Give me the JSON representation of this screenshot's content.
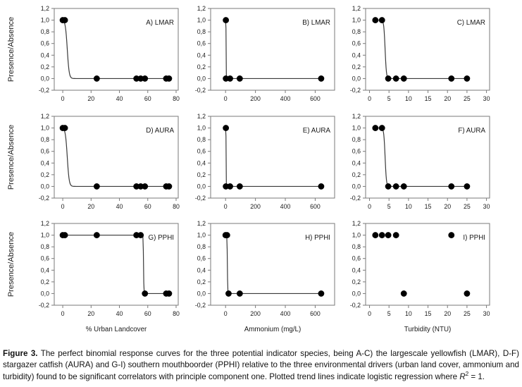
{
  "figure": {
    "caption_label": "Figure 3.",
    "caption_text": " The perfect binomial response curves for the three potential indicator species, being A-C) the largescale yellowfish (LMAR), D-F) stargazer catfish (AURA) and G-I) southern mouthboorder (PPHI) relative to the three environmental drivers (urban land cover, ammonium and turbidity) found to be significant correlators with principle component one. Plotted trend lines indicate logistic regression where ",
    "caption_r": "R",
    "caption_r_sup": "2",
    "caption_tail": " = 1."
  },
  "style": {
    "dot_color": "#000000",
    "line_color": "#3a3a3a",
    "frame_color": "#7a7a7a",
    "text_color": "#1a1a1a"
  },
  "chart_data": [
    {
      "type": "scatter",
      "label": "A) LMAR",
      "ylabel": "Presence/Absence",
      "xlabel": "",
      "xlim": [
        -6,
        81.5
      ],
      "xticks": [
        0,
        20,
        40,
        60,
        80
      ],
      "xtick_labels": [
        "0",
        "20",
        "40",
        "60",
        "80"
      ],
      "ylim": [
        -0.2,
        1.2
      ],
      "ytick_values": [
        1.2,
        1.0,
        0.8,
        0.6,
        0.4,
        0.2,
        0.0,
        -0.2
      ],
      "ytick_labels": [
        "1,2",
        "1,0",
        "0,8",
        "0,6",
        "0,4",
        "0,2",
        "0,0",
        "-0,2"
      ],
      "points": {
        "presence": [
          0,
          1.5
        ],
        "absence": [
          24,
          52,
          55,
          58,
          73,
          75
        ]
      },
      "trend": {
        "x0": 3.2,
        "k": 1.5,
        "x_start": 0,
        "x_end": 75
      }
    },
    {
      "type": "scatter",
      "label": "B) LMAR",
      "ylabel": "Presence/Absence",
      "xlabel": "",
      "xlim": [
        -100,
        730
      ],
      "xticks": [
        0,
        200,
        400,
        600
      ],
      "xtick_labels": [
        "0",
        "200",
        "400",
        "600"
      ],
      "ylim": [
        -0.2,
        1.2
      ],
      "ytick_values": [
        1.2,
        1.0,
        0.8,
        0.6,
        0.4,
        0.2,
        0.0,
        -0.2
      ],
      "ytick_labels": [
        "1,2",
        "1,0",
        "0,8",
        "0,6",
        "0,4",
        "0,2",
        "0,0",
        "-0,2"
      ],
      "points": {
        "presence": [
          2
        ],
        "absence": [
          2,
          30,
          95,
          640
        ]
      },
      "trend": {
        "x0": 3.5,
        "k": 2.2,
        "x_start": 0,
        "x_end": 640
      }
    },
    {
      "type": "scatter",
      "label": "C) LMAR",
      "ylabel": "Presence/Absence",
      "xlabel": "",
      "xlim": [
        -1,
        30.8
      ],
      "xticks": [
        0,
        5,
        10,
        15,
        20,
        25,
        30
      ],
      "xtick_labels": [
        "0",
        "5",
        "10",
        "15",
        "20",
        "25",
        "30"
      ],
      "ylim": [
        -0.2,
        1.2
      ],
      "ytick_values": [
        1.2,
        1.0,
        0.8,
        0.6,
        0.4,
        0.2,
        0.0,
        -0.2
      ],
      "ytick_labels": [
        "1,2",
        "1,0",
        "0,8",
        "0,6",
        "0,4",
        "0,2",
        "0,0",
        "-0,2"
      ],
      "points": {
        "presence": [
          1.5,
          3.2
        ],
        "absence": [
          4.8,
          6.8,
          8.8,
          21,
          25
        ]
      },
      "trend": {
        "x0": 4.0,
        "k": 6,
        "x_start": 1.5,
        "x_end": 25
      }
    },
    {
      "type": "scatter",
      "label": "D) AURA",
      "ylabel": "Presence/Absence",
      "xlabel": "",
      "xlim": [
        -6,
        81.5
      ],
      "xticks": [
        0,
        20,
        40,
        60,
        80
      ],
      "xtick_labels": [
        "0",
        "20",
        "40",
        "60",
        "80"
      ],
      "ylim": [
        -0.2,
        1.2
      ],
      "ytick_values": [
        1.2,
        1.0,
        0.8,
        0.6,
        0.4,
        0.2,
        0.0,
        -0.2
      ],
      "ytick_labels": [
        "1,2",
        "1,0",
        "0,8",
        "0,6",
        "0,4",
        "0,2",
        "0,0",
        "-0,2"
      ],
      "points": {
        "presence": [
          0,
          1.5
        ],
        "absence": [
          24,
          52,
          55,
          58,
          73,
          75
        ]
      },
      "trend": {
        "x0": 3.2,
        "k": 1.5,
        "x_start": 0,
        "x_end": 75
      }
    },
    {
      "type": "scatter",
      "label": "E) AURA",
      "ylabel": "Presence/Absence",
      "xlabel": "",
      "xlim": [
        -100,
        730
      ],
      "xticks": [
        0,
        200,
        400,
        600
      ],
      "xtick_labels": [
        "0",
        "200",
        "400",
        "600"
      ],
      "ylim": [
        -0.2,
        1.2
      ],
      "ytick_values": [
        1.2,
        1.0,
        0.8,
        0.6,
        0.4,
        0.2,
        0.0,
        -0.2
      ],
      "ytick_labels": [
        "1,2",
        "1,0",
        "0,8",
        "0,6",
        "0,4",
        "0,2",
        "0,0",
        "-0,2"
      ],
      "points": {
        "presence": [
          2
        ],
        "absence": [
          2,
          30,
          95,
          640
        ]
      },
      "trend": {
        "x0": 3.5,
        "k": 2.2,
        "x_start": 0,
        "x_end": 640
      }
    },
    {
      "type": "scatter",
      "label": "F) AURA",
      "ylabel": "Presence/Absence",
      "xlabel": "",
      "xlim": [
        -1,
        30.8
      ],
      "xticks": [
        0,
        5,
        10,
        15,
        20,
        25,
        30
      ],
      "xtick_labels": [
        "0",
        "5",
        "10",
        "15",
        "20",
        "25",
        "30"
      ],
      "ylim": [
        -0.2,
        1.2
      ],
      "ytick_values": [
        1.2,
        1.0,
        0.8,
        0.6,
        0.4,
        0.2,
        0.0,
        -0.2
      ],
      "ytick_labels": [
        "1,2",
        "1,0",
        "0,8",
        "0,6",
        "0,4",
        "0,2",
        "0,0",
        "-0,2"
      ],
      "points": {
        "presence": [
          1.5,
          3.2
        ],
        "absence": [
          4.8,
          6.8,
          8.8,
          21,
          25
        ]
      },
      "trend": {
        "x0": 4.0,
        "k": 6,
        "x_start": 1.5,
        "x_end": 25
      }
    },
    {
      "type": "scatter",
      "label": "G) PPHI",
      "ylabel": "Presence/Absence",
      "xlabel": "% Urban Landcover",
      "xlim": [
        -6,
        81.5
      ],
      "xticks": [
        0,
        20,
        40,
        60,
        80
      ],
      "xtick_labels": [
        "0",
        "20",
        "40",
        "60",
        "80"
      ],
      "ylim": [
        -0.2,
        1.2
      ],
      "ytick_values": [
        1.2,
        1.0,
        0.8,
        0.6,
        0.4,
        0.2,
        0.0,
        -0.2
      ],
      "ytick_labels": [
        "1,2",
        "1,0",
        "0,8",
        "0,6",
        "0,4",
        "0,2",
        "0,0",
        "-0,2"
      ],
      "points": {
        "presence": [
          0,
          1.5,
          24,
          52,
          55
        ],
        "absence": [
          58,
          73,
          75
        ]
      },
      "trend": {
        "x0": 57,
        "k": 8,
        "x_start": 0,
        "x_end": 75
      }
    },
    {
      "type": "scatter",
      "label": "H) PPHI",
      "ylabel": "Presence/Absence",
      "xlabel": "Ammonium (mg/L)",
      "xlim": [
        -100,
        730
      ],
      "xticks": [
        0,
        200,
        400,
        600
      ],
      "xtick_labels": [
        "0",
        "200",
        "400",
        "600"
      ],
      "ylim": [
        -0.2,
        1.2
      ],
      "ytick_values": [
        1.2,
        1.0,
        0.8,
        0.6,
        0.4,
        0.2,
        0.0,
        -0.2
      ],
      "ytick_labels": [
        "1,2",
        "1,0",
        "0,8",
        "0,6",
        "0,4",
        "0,2",
        "0,0",
        "-0,2"
      ],
      "points": {
        "presence": [
          0,
          10
        ],
        "absence": [
          20,
          95,
          640
        ]
      },
      "trend": {
        "x0": 12,
        "k": 0.85,
        "x_start": 0,
        "x_end": 640
      }
    },
    {
      "type": "scatter",
      "label": "I) PPHI",
      "ylabel": "Presence/Absence",
      "xlabel": "Turbidity (NTU)",
      "xlim": [
        -1,
        30.8
      ],
      "xticks": [
        0,
        5,
        10,
        15,
        20,
        25,
        30
      ],
      "xtick_labels": [
        "0",
        "5",
        "10",
        "15",
        "20",
        "25",
        "30"
      ],
      "ylim": [
        -0.2,
        1.2
      ],
      "ytick_values": [
        1.2,
        1.0,
        0.8,
        0.6,
        0.4,
        0.2,
        0.0,
        -0.2
      ],
      "ytick_labels": [
        "1,2",
        "1,0",
        "0,8",
        "0,6",
        "0,4",
        "0,2",
        "0,0",
        "-0,2"
      ],
      "points": {
        "presence": [
          1.5,
          3.2,
          4.8,
          6.8,
          21
        ],
        "absence": [
          8.8,
          25
        ]
      },
      "trend": null
    }
  ]
}
